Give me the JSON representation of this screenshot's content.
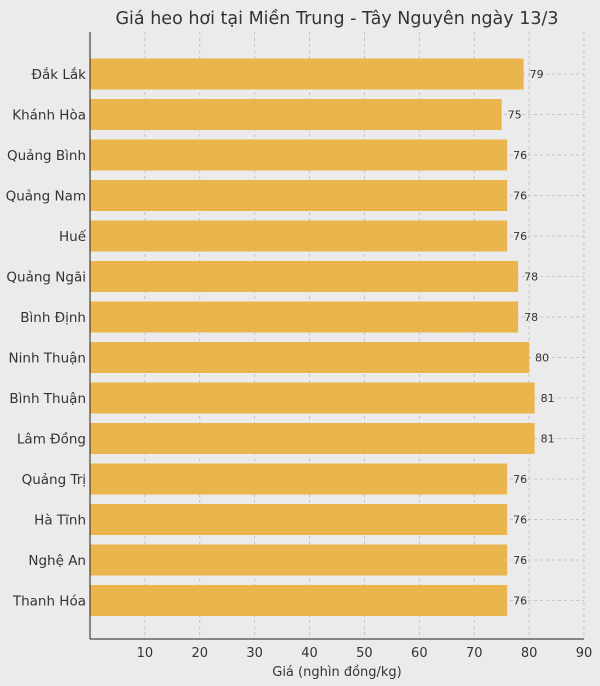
{
  "chart_data": {
    "type": "bar",
    "orientation": "horizontal",
    "title": "Giá heo hơi tại Miền Trung - Tây Nguyên ngày 13/3",
    "xlabel": "Giá (nghìn đồng/kg)",
    "ylabel": "",
    "categories": [
      "Đắk Lắk",
      "Khánh Hòa",
      "Quảng Bình",
      "Quảng Nam",
      "Huế",
      "Quảng Ngãi",
      "Bình Định",
      "Ninh Thuận",
      "Bình Thuận",
      "Lâm Đồng",
      "Quảng Trị",
      "Hà Tĩnh",
      "Nghệ An",
      "Thanh Hóa"
    ],
    "values": [
      79,
      75,
      76,
      76,
      76,
      78,
      78,
      80,
      81,
      81,
      76,
      76,
      76,
      76
    ],
    "xlim": [
      0,
      90
    ],
    "xticks": [
      10,
      20,
      30,
      40,
      50,
      60,
      70,
      80,
      90
    ],
    "grid": true,
    "bar_color": "#ebb54e",
    "background_color": "#ebebeb"
  }
}
